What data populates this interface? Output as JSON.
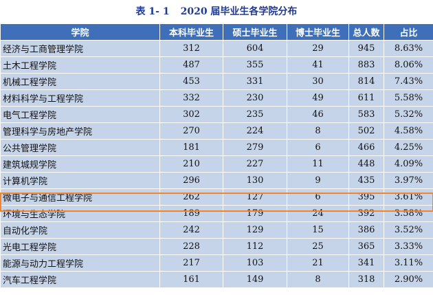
{
  "caption": {
    "table_number": "表 1- 1",
    "title": "2020 届毕业生各学院分布"
  },
  "headers": [
    "学院",
    "本科毕业生",
    "硕士毕业生",
    "博士毕业生",
    "总人数",
    "占比"
  ],
  "rows": [
    [
      "经济与工商管理学院",
      "312",
      "604",
      "29",
      "945",
      "8.63%"
    ],
    [
      "土木工程学院",
      "487",
      "355",
      "41",
      "883",
      "8.06%"
    ],
    [
      "机械工程学院",
      "453",
      "331",
      "30",
      "814",
      "7.43%"
    ],
    [
      "材料科学与工程学院",
      "332",
      "230",
      "49",
      "611",
      "5.58%"
    ],
    [
      "电气工程学院",
      "302",
      "235",
      "46",
      "583",
      "5.32%"
    ],
    [
      "管理科学与房地产学院",
      "270",
      "224",
      "8",
      "502",
      "4.58%"
    ],
    [
      "公共管理学院",
      "181",
      "279",
      "6",
      "466",
      "4.25%"
    ],
    [
      "建筑城规学院",
      "210",
      "227",
      "11",
      "448",
      "4.09%"
    ],
    [
      "计算机学院",
      "296",
      "130",
      "9",
      "435",
      "3.97%"
    ],
    [
      "微电子与通信工程学院",
      "262",
      "127",
      "6",
      "395",
      "3.61%"
    ],
    [
      "环境与生态学院",
      "189",
      "179",
      "24",
      "392",
      "3.58%"
    ],
    [
      "自动化学院",
      "242",
      "129",
      "15",
      "386",
      "3.52%"
    ],
    [
      "光电工程学院",
      "228",
      "112",
      "25",
      "365",
      "3.33%"
    ],
    [
      "能源与动力工程学院",
      "217",
      "103",
      "21",
      "341",
      "3.11%"
    ],
    [
      "汽车工程学院",
      "161",
      "149",
      "8",
      "318",
      "2.90%"
    ]
  ],
  "highlighted_row": "微电子与通信工程学院",
  "colors": {
    "header_bg": "#3e6fb8",
    "cell_bg": "#c6d4e9",
    "caption_text": "#1f3a93",
    "highlight_border": "#f0852d"
  }
}
